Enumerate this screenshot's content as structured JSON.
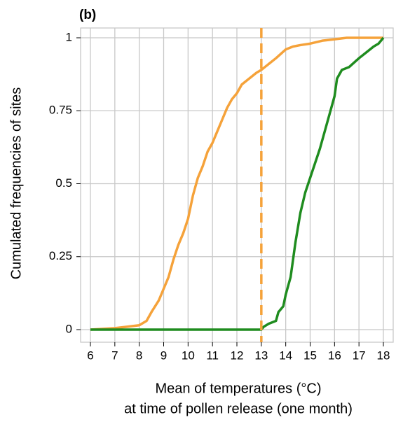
{
  "chart_data": {
    "type": "line",
    "title": "(b)",
    "x_label": [
      "Mean of temperatures (°C)",
      "at time of pollen release (one month)"
    ],
    "y_label": "Cumulated frequencies of sites",
    "xlim": [
      6,
      18
    ],
    "ylim": [
      0,
      1
    ],
    "xticks": [
      6,
      7,
      8,
      9,
      10,
      11,
      12,
      13,
      14,
      15,
      16,
      17,
      18
    ],
    "yticks": [
      0,
      0.25,
      0.5,
      0.75,
      1
    ],
    "grid": true,
    "vline": {
      "x": 13,
      "color": "#f5a23a"
    },
    "series": [
      {
        "color": "#f5a23a",
        "x": [
          6,
          7,
          7.5,
          8,
          8.3,
          8.5,
          8.8,
          9,
          9.2,
          9.4,
          9.6,
          9.8,
          10,
          10.2,
          10.4,
          10.6,
          10.8,
          11,
          11.2,
          11.4,
          11.6,
          11.8,
          12,
          12.2,
          12.5,
          12.8,
          13,
          13.3,
          13.6,
          14,
          14.3,
          14.6,
          15,
          15.5,
          16,
          16.5,
          17,
          18
        ],
        "values": [
          0,
          0.005,
          0.01,
          0.015,
          0.03,
          0.06,
          0.1,
          0.14,
          0.18,
          0.24,
          0.29,
          0.33,
          0.38,
          0.46,
          0.52,
          0.56,
          0.61,
          0.64,
          0.68,
          0.72,
          0.76,
          0.79,
          0.81,
          0.84,
          0.86,
          0.88,
          0.89,
          0.91,
          0.93,
          0.96,
          0.97,
          0.975,
          0.98,
          0.99,
          0.995,
          1,
          1,
          1
        ]
      },
      {
        "color": "#1f8c1f",
        "x": [
          6,
          13,
          13.1,
          13.3,
          13.6,
          13.7,
          13.9,
          14,
          14.2,
          14.4,
          14.6,
          14.8,
          15,
          15.2,
          15.4,
          15.6,
          15.8,
          16,
          16.1,
          16.3,
          16.6,
          17,
          17.3,
          17.6,
          17.8,
          18
        ],
        "values": [
          0,
          0,
          0.01,
          0.02,
          0.03,
          0.06,
          0.08,
          0.12,
          0.18,
          0.3,
          0.4,
          0.47,
          0.52,
          0.57,
          0.62,
          0.68,
          0.74,
          0.8,
          0.86,
          0.89,
          0.9,
          0.93,
          0.95,
          0.97,
          0.98,
          1
        ]
      }
    ]
  }
}
